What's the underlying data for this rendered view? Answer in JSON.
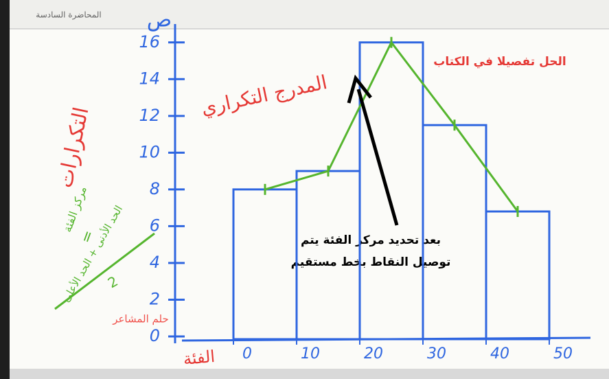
{
  "header": "المحاضرة السادسة",
  "chart_data": {
    "type": "histogram",
    "title": "المدرج التكراري",
    "ylabel": "التكرارات",
    "xlabel": "الفئة",
    "y_symbol": "ص",
    "bins": [
      0,
      10,
      20,
      30,
      40,
      50
    ],
    "counts": [
      8,
      9,
      16,
      11.5,
      6.8
    ],
    "color": "#2f66e0",
    "polygon": true,
    "polygon_color": "#55b52e",
    "xlim": [
      0,
      50
    ],
    "xticks": [
      0,
      10,
      20,
      30,
      40,
      50
    ],
    "ylim": [
      0,
      17
    ],
    "yticks": [
      0,
      2,
      4,
      6,
      8,
      10,
      12,
      14,
      16
    ],
    "annotations": [
      "الحل تفصيلا في الكتاب",
      "بعد تحديد مركز الفئة يتم",
      "توصيل النقاط بخط مستقيم",
      "حلم المشاعر"
    ],
    "formula": [
      "مركز الفئة",
      "=",
      "الحد الأدنى + الحد الأعلى",
      "2"
    ]
  }
}
